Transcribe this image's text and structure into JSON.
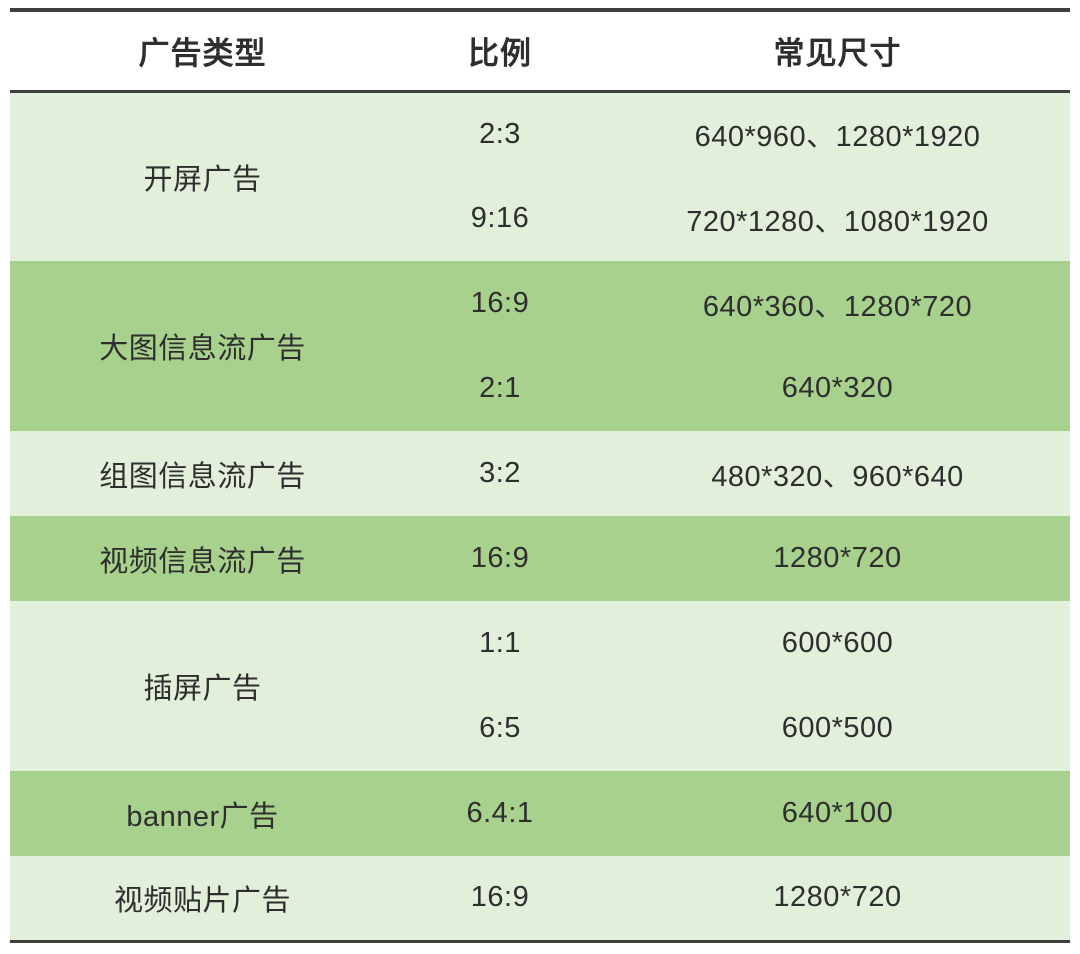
{
  "table": {
    "columns": {
      "ad_type": "广告类型",
      "ratio": "比例",
      "sizes": "常见尺寸"
    },
    "groups": [
      {
        "type": "开屏广告",
        "shade": "light",
        "rows": [
          {
            "ratio": "2:3",
            "sizes": "640*960、1280*1920"
          },
          {
            "ratio": "9:16",
            "sizes": "720*1280、1080*1920"
          }
        ]
      },
      {
        "type": "大图信息流广告",
        "shade": "dark",
        "rows": [
          {
            "ratio": "16:9",
            "sizes": "640*360、1280*720"
          },
          {
            "ratio": "2:1",
            "sizes": "640*320"
          }
        ]
      },
      {
        "type": "组图信息流广告",
        "shade": "light",
        "rows": [
          {
            "ratio": "3:2",
            "sizes": "480*320、960*640"
          }
        ]
      },
      {
        "type": "视频信息流广告",
        "shade": "dark",
        "rows": [
          {
            "ratio": "16:9",
            "sizes": "1280*720"
          }
        ]
      },
      {
        "type": "插屏广告",
        "shade": "light",
        "rows": [
          {
            "ratio": "1:1",
            "sizes": "600*600"
          },
          {
            "ratio": "6:5",
            "sizes": "600*500"
          }
        ]
      },
      {
        "type": "banner广告",
        "shade": "dark",
        "rows": [
          {
            "ratio": "6.4:1",
            "sizes": "640*100"
          }
        ]
      },
      {
        "type": "视频贴片广告",
        "shade": "light",
        "rows": [
          {
            "ratio": "16:9",
            "sizes": "1280*720"
          }
        ]
      }
    ],
    "colors": {
      "light_row": "#e2efda",
      "dark_row": "#a9d18e",
      "border": "#3f3f3f",
      "text": "#2e2e2e"
    }
  },
  "chart_data": {
    "type": "table",
    "title": "",
    "columns": [
      "广告类型",
      "比例",
      "常见尺寸"
    ],
    "rows": [
      [
        "开屏广告",
        "2:3",
        "640*960、1280*1920"
      ],
      [
        "开屏广告",
        "9:16",
        "720*1280、1080*1920"
      ],
      [
        "大图信息流广告",
        "16:9",
        "640*360、1280*720"
      ],
      [
        "大图信息流广告",
        "2:1",
        "640*320"
      ],
      [
        "组图信息流广告",
        "3:2",
        "480*320、960*640"
      ],
      [
        "视频信息流广告",
        "16:9",
        "1280*720"
      ],
      [
        "插屏广告",
        "1:1",
        "600*600"
      ],
      [
        "插屏广告",
        "6:5",
        "600*500"
      ],
      [
        "banner广告",
        "6.4:1",
        "640*100"
      ],
      [
        "视频贴片广告",
        "16:9",
        "1280*720"
      ]
    ],
    "layout_hints": {
      "striped_by_group": true,
      "stripe_colors": [
        "#e2efda",
        "#a9d18e"
      ],
      "header_background": "#ffffff",
      "merged_first_column_groups": true,
      "rules": [
        "top",
        "below-header",
        "bottom"
      ]
    }
  }
}
